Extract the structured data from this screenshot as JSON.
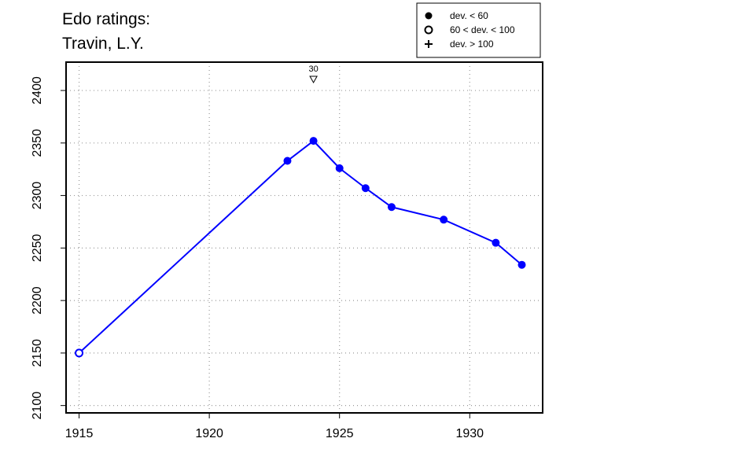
{
  "chart_data": {
    "type": "line",
    "title_lines": [
      "Edo ratings:",
      "Travin, L.Y."
    ],
    "xlim": [
      1914.5,
      1932.8
    ],
    "ylim": [
      2093,
      2427
    ],
    "x_ticks": [
      1915,
      1920,
      1925,
      1930
    ],
    "y_ticks": [
      2100,
      2150,
      2200,
      2250,
      2300,
      2350,
      2400
    ],
    "grid": true,
    "line_color": "#0000ff",
    "points": [
      {
        "x": 1915,
        "y": 2150,
        "marker": "open"
      },
      {
        "x": 1923,
        "y": 2333,
        "marker": "filled"
      },
      {
        "x": 1924,
        "y": 2352,
        "marker": "filled"
      },
      {
        "x": 1925,
        "y": 2326,
        "marker": "filled"
      },
      {
        "x": 1926,
        "y": 2307,
        "marker": "filled"
      },
      {
        "x": 1927,
        "y": 2289,
        "marker": "filled"
      },
      {
        "x": 1929,
        "y": 2277,
        "marker": "filled"
      },
      {
        "x": 1931,
        "y": 2255,
        "marker": "filled"
      },
      {
        "x": 1932,
        "y": 2234,
        "marker": "filled"
      }
    ],
    "annotations": [
      {
        "x": 1924,
        "label": "30",
        "symbol": "down-triangle"
      }
    ],
    "legend": {
      "position": "top-right",
      "entries": [
        {
          "symbol": "filled",
          "label": "dev. < 60"
        },
        {
          "symbol": "open",
          "label": "60 < dev. < 100"
        },
        {
          "symbol": "plus",
          "label": "dev. > 100"
        }
      ]
    }
  }
}
